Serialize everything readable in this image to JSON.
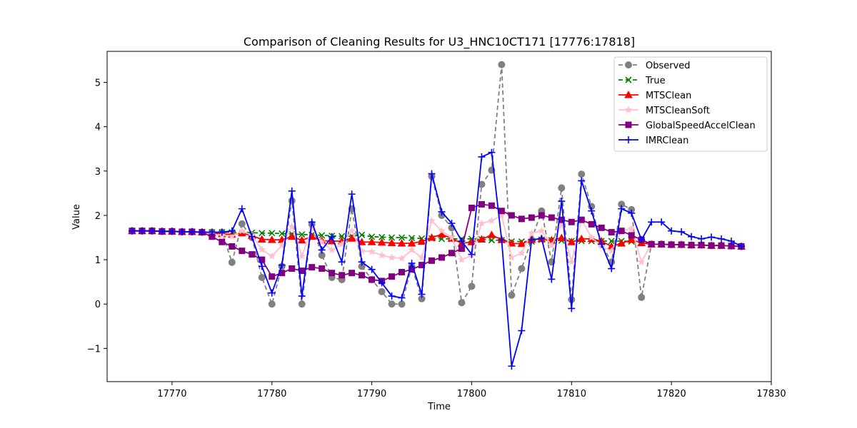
{
  "chart_data": {
    "type": "line",
    "title": "Comparison of Cleaning Results for U3_HNC10CT171 [17776:17818]",
    "xlabel": "Time",
    "ylabel": "Value",
    "xlim": [
      17763.5,
      17830
    ],
    "ylim": [
      -1.75,
      5.7
    ],
    "x_ticks": [
      17770,
      17780,
      17790,
      17800,
      17810,
      17820,
      17830
    ],
    "y_ticks": [
      -1,
      0,
      1,
      2,
      3,
      4,
      5
    ],
    "y_tick_labels": [
      "−1",
      "0",
      "1",
      "2",
      "3",
      "4",
      "5"
    ],
    "legend_position": "top-right",
    "x": [
      17766,
      17767,
      17768,
      17769,
      17770,
      17771,
      17772,
      17773,
      17774,
      17775,
      17776,
      17777,
      17778,
      17779,
      17780,
      17781,
      17782,
      17783,
      17784,
      17785,
      17786,
      17787,
      17788,
      17789,
      17790,
      17791,
      17792,
      17793,
      17794,
      17795,
      17796,
      17797,
      17798,
      17799,
      17800,
      17801,
      17802,
      17803,
      17804,
      17805,
      17806,
      17807,
      17808,
      17809,
      17810,
      17811,
      17812,
      17813,
      17814,
      17815,
      17816,
      17817,
      17818,
      17819,
      17820,
      17821,
      17822,
      17823,
      17824,
      17825,
      17826,
      17827
    ],
    "series": [
      {
        "name": "Observed",
        "color": "#808080",
        "dash": "6,4",
        "marker": "circle",
        "values": [
          1.65,
          1.65,
          1.65,
          1.64,
          1.64,
          1.63,
          1.63,
          1.62,
          1.62,
          1.62,
          0.94,
          1.81,
          1.5,
          0.6,
          0.0,
          0.85,
          2.33,
          0.0,
          1.8,
          1.1,
          0.6,
          0.55,
          2.15,
          0.85,
          0.55,
          0.28,
          0.0,
          0.0,
          0.85,
          0.12,
          2.88,
          2.0,
          1.72,
          0.03,
          0.4,
          2.7,
          3.02,
          5.4,
          0.2,
          0.8,
          1.45,
          2.1,
          0.95,
          2.62,
          0.1,
          2.93,
          2.2,
          1.35,
          0.95,
          2.25,
          2.13,
          0.15,
          1.35,
          1.35,
          1.34,
          1.34,
          1.33,
          1.33,
          1.32,
          1.32,
          1.31,
          1.3
        ]
      },
      {
        "name": "True",
        "color": "#008000",
        "dash": "6,4",
        "marker": "x",
        "values": [
          1.65,
          1.65,
          1.65,
          1.64,
          1.64,
          1.63,
          1.63,
          1.62,
          1.62,
          1.62,
          1.62,
          1.61,
          1.61,
          1.6,
          1.6,
          1.59,
          1.58,
          1.57,
          1.56,
          1.55,
          1.54,
          1.53,
          1.53,
          1.56,
          1.52,
          1.51,
          1.5,
          1.5,
          1.49,
          1.48,
          1.48,
          1.47,
          1.47,
          1.47,
          1.47,
          1.46,
          1.44,
          1.44,
          1.41,
          1.41,
          1.41,
          1.45,
          1.44,
          1.43,
          1.42,
          1.42,
          1.42,
          1.42,
          1.42,
          1.42,
          1.41,
          1.4,
          1.35,
          1.35,
          1.34,
          1.34,
          1.33,
          1.33,
          1.32,
          1.32,
          1.31,
          1.3
        ]
      },
      {
        "name": "MTSClean",
        "color": "#ff0000",
        "dash": "",
        "marker": "triangle",
        "values": [
          1.65,
          1.65,
          1.65,
          1.64,
          1.64,
          1.63,
          1.63,
          1.62,
          1.6,
          1.58,
          1.57,
          1.6,
          1.54,
          1.46,
          1.45,
          1.45,
          1.52,
          1.44,
          1.52,
          1.43,
          1.42,
          1.42,
          1.48,
          1.4,
          1.4,
          1.39,
          1.38,
          1.37,
          1.37,
          1.41,
          1.5,
          1.57,
          1.48,
          1.37,
          1.4,
          1.46,
          1.56,
          1.45,
          1.37,
          1.36,
          1.45,
          1.47,
          1.44,
          1.49,
          1.4,
          1.47,
          1.47,
          1.42,
          1.3,
          1.37,
          1.45,
          1.38,
          1.35,
          1.35,
          1.34,
          1.34,
          1.33,
          1.33,
          1.32,
          1.32,
          1.31,
          1.3
        ]
      },
      {
        "name": "MTSCleanSoft",
        "color": "#ffc0cb",
        "dash": "",
        "marker": "star",
        "values": [
          1.65,
          1.65,
          1.65,
          1.64,
          1.64,
          1.63,
          1.63,
          1.62,
          1.58,
          1.55,
          1.53,
          1.65,
          1.55,
          1.23,
          1.08,
          1.32,
          1.75,
          1.08,
          1.7,
          1.4,
          1.22,
          1.35,
          1.65,
          1.2,
          1.18,
          1.1,
          1.05,
          1.03,
          1.22,
          1.05,
          1.88,
          1.65,
          1.5,
          1.0,
          1.1,
          1.82,
          1.88,
          2.0,
          1.05,
          1.15,
          1.6,
          1.65,
          1.32,
          1.8,
          0.95,
          1.9,
          1.5,
          1.3,
          1.2,
          1.65,
          1.7,
          0.95,
          1.35,
          1.35,
          1.34,
          1.34,
          1.33,
          1.33,
          1.32,
          1.32,
          1.31,
          1.3
        ]
      },
      {
        "name": "GlobalSpeedAccelClean",
        "color": "#800080",
        "dash": "",
        "marker": "square",
        "values": [
          1.65,
          1.65,
          1.65,
          1.64,
          1.64,
          1.63,
          1.63,
          1.62,
          1.52,
          1.4,
          1.3,
          1.2,
          1.12,
          1.0,
          0.62,
          0.7,
          0.8,
          0.75,
          0.83,
          0.8,
          0.7,
          0.65,
          0.7,
          0.65,
          0.55,
          0.52,
          0.62,
          0.72,
          0.78,
          0.88,
          0.98,
          1.05,
          1.15,
          1.25,
          2.17,
          2.25,
          2.22,
          2.1,
          2.0,
          1.92,
          1.95,
          2.0,
          1.95,
          1.9,
          1.85,
          1.9,
          1.8,
          1.72,
          1.62,
          1.65,
          1.55,
          1.45,
          1.35,
          1.35,
          1.34,
          1.34,
          1.33,
          1.33,
          1.32,
          1.32,
          1.31,
          1.3
        ]
      },
      {
        "name": "IMRClean",
        "color": "#0000ff",
        "dash": "",
        "marker": "plus",
        "values": [
          1.65,
          1.65,
          1.65,
          1.64,
          1.64,
          1.63,
          1.63,
          1.62,
          1.62,
          1.62,
          1.65,
          2.15,
          1.52,
          0.85,
          0.25,
          0.88,
          2.55,
          0.18,
          1.85,
          1.22,
          1.52,
          0.95,
          2.48,
          0.95,
          0.78,
          0.48,
          0.18,
          0.14,
          0.92,
          0.22,
          2.94,
          2.08,
          1.82,
          1.42,
          1.12,
          3.32,
          3.42,
          1.45,
          -1.4,
          -0.6,
          1.45,
          1.48,
          0.56,
          2.32,
          -0.1,
          2.78,
          2.1,
          1.35,
          0.8,
          2.15,
          2.05,
          1.45,
          1.85,
          1.85,
          1.65,
          1.63,
          1.52,
          1.47,
          1.51,
          1.47,
          1.42,
          1.3
        ]
      }
    ]
  }
}
